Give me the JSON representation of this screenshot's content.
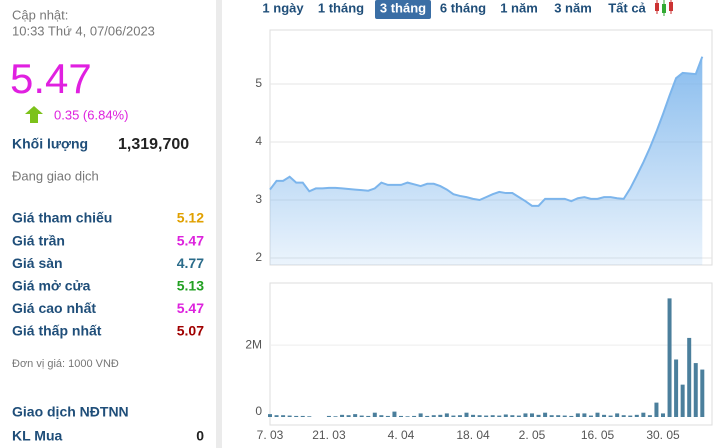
{
  "header": {
    "update_label": "Cập nhật:",
    "timestamp": "10:33 Thứ 4, 07/06/2023"
  },
  "quote": {
    "price": "5.47",
    "change": "0.35 (6.84%)",
    "volume_label": "Khối lượng",
    "volume": "1,319,700",
    "status": "Đang giao dịch"
  },
  "price_table": {
    "rows": [
      [
        "Giá tham chiếu",
        "5.12"
      ],
      [
        "Giá trần",
        "5.47"
      ],
      [
        "Giá sàn",
        "4.77"
      ],
      [
        "Giá mở cửa",
        "5.13"
      ],
      [
        "Giá cao nhất",
        "5.47"
      ],
      [
        "Giá thấp nhất",
        "5.07"
      ]
    ],
    "colors": [
      "#e0a000",
      "#dd22dd",
      "#2a6b8a",
      "#22a022",
      "#dd22dd",
      "#a00000"
    ]
  },
  "unit_note": "Đơn vị giá: 1000 VNĐ",
  "foreign": {
    "title": "Giao dịch NĐTNN",
    "rows": [
      [
        "KL Mua",
        "0"
      ]
    ]
  },
  "tabs": {
    "items": [
      "1 ngày",
      "1 tháng",
      "3 tháng",
      "6 tháng",
      "1 năm",
      "3 năm",
      "Tất cả"
    ],
    "active": 2
  },
  "chart_data": {
    "type": "stock",
    "categories": [
      "7. 03",
      null,
      null,
      null,
      null,
      null,
      null,
      null,
      null,
      "21. 03",
      null,
      null,
      null,
      null,
      null,
      null,
      null,
      null,
      null,
      null,
      "4. 04",
      null,
      null,
      null,
      null,
      null,
      null,
      null,
      null,
      null,
      null,
      "18. 04",
      null,
      null,
      null,
      null,
      null,
      null,
      null,
      null,
      "2. 05",
      null,
      null,
      null,
      null,
      null,
      null,
      null,
      null,
      null,
      "16. 05",
      null,
      null,
      null,
      null,
      null,
      null,
      null,
      null,
      null,
      "30. 05",
      null,
      null,
      null,
      null,
      null,
      null
    ],
    "series": [
      {
        "type": "area",
        "color": "#7cb5ec",
        "values": [
          3.18,
          3.33,
          3.33,
          3.4,
          3.3,
          3.3,
          3.15,
          3.2,
          3.2,
          3.21,
          3.21,
          3.2,
          3.19,
          3.18,
          3.17,
          3.16,
          3.2,
          3.3,
          3.26,
          3.26,
          3.26,
          3.3,
          3.27,
          3.24,
          3.28,
          3.28,
          3.24,
          3.18,
          3.1,
          3.07,
          3.05,
          3.02,
          3.0,
          3.05,
          3.1,
          3.14,
          3.12,
          3.12,
          3.05,
          2.98,
          2.9,
          2.9,
          3.02,
          3.02,
          3.02,
          3.02,
          2.98,
          3.03,
          3.05,
          3.02,
          3.02,
          3.05,
          3.05,
          3.03,
          3.02,
          3.2,
          3.42,
          3.65,
          3.9,
          4.18,
          4.48,
          4.8,
          5.1,
          5.19,
          5.18,
          5.17,
          5.47
        ]
      },
      {
        "type": "bar",
        "axis": "y2",
        "color": "#4b7f9c",
        "values": [
          80000,
          50000,
          50000,
          40000,
          30000,
          30000,
          20000,
          0,
          0,
          30000,
          20000,
          60000,
          50000,
          80000,
          40000,
          30000,
          120000,
          50000,
          30000,
          150000,
          30000,
          20000,
          30000,
          100000,
          30000,
          50000,
          60000,
          100000,
          40000,
          50000,
          120000,
          60000,
          50000,
          40000,
          50000,
          40000,
          70000,
          50000,
          40000,
          100000,
          100000,
          60000,
          120000,
          50000,
          50000,
          40000,
          30000,
          100000,
          100000,
          40000,
          120000,
          60000,
          40000,
          100000,
          50000,
          40000,
          60000,
          120000,
          50000,
          400000,
          100000,
          3300000,
          1600000,
          900000,
          2200000,
          1500000,
          1319700
        ]
      }
    ],
    "ylim": [
      1.88,
      5.93
    ],
    "yticks": [
      2,
      3,
      4,
      5
    ],
    "y2lim": [
      0,
      3700000
    ],
    "y2ticks": [
      0,
      {
        "value": 2000000,
        "label": "2M"
      }
    ],
    "grid": true
  }
}
